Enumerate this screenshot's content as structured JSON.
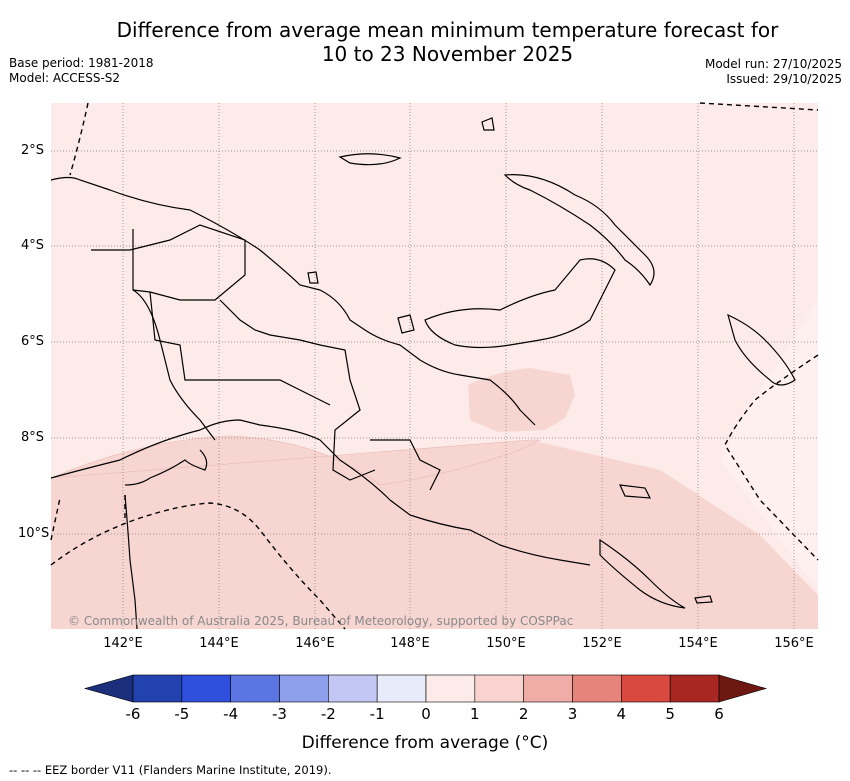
{
  "title": {
    "line1": "Difference from average mean minimum temperature forecast for",
    "line2": "10 to 23 November 2025"
  },
  "meta": {
    "base_period": "Base period: 1981-2018",
    "model": "Model: ACCESS-S2",
    "model_run": "Model run: 27/10/2025",
    "issued": "Issued: 29/10/2025"
  },
  "latitude_labels": [
    "2°S",
    "4°S",
    "6°S",
    "8°S",
    "10°S"
  ],
  "longitude_labels": [
    "142°E",
    "144°E",
    "146°E",
    "148°E",
    "150°E",
    "152°E",
    "154°E",
    "156°E"
  ],
  "credit": "© Commonwealth of Australia 2025, Bureau of Meteorology, supported by COSPPac",
  "colorbar": {
    "ticks": [
      "-6",
      "-5",
      "-4",
      "-3",
      "-2",
      "-1",
      "0",
      "1",
      "2",
      "3",
      "4",
      "5",
      "6"
    ],
    "label": "Difference from average (°C)",
    "colors": [
      "#1b2f7d",
      "#2242b0",
      "#2e50dd",
      "#5b75e3",
      "#8d9eeb",
      "#c2c8f3",
      "#e8ebfa",
      "#fcebe8",
      "#f8d3cf",
      "#f0aca6",
      "#e6837b",
      "#d9493f",
      "#a82721",
      "#6e1812"
    ]
  },
  "legend_note": "--  --  -- EEZ border V11 (Flanders Marine Institute, 2019).",
  "colors": {
    "map_background": "#fcebe8",
    "warmer_band": "#f7d6d2",
    "lighter_band": "#fdf0ee"
  }
}
